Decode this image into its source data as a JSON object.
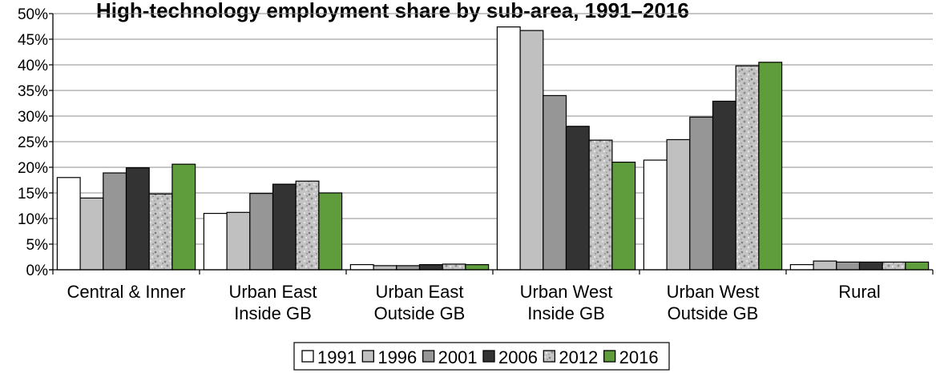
{
  "chart_data": {
    "type": "bar",
    "title": "High-technology employment share by sub-area, 1991–2016",
    "categories": [
      [
        "Central & Inner"
      ],
      [
        "Urban East",
        "Inside GB"
      ],
      [
        "Urban East",
        "Outside GB"
      ],
      [
        "Urban West",
        "Inside GB"
      ],
      [
        "Urban West",
        "Outside GB"
      ],
      [
        "Rural"
      ]
    ],
    "series": [
      {
        "name": "1991",
        "values": [
          18.0,
          11.0,
          1.0,
          47.4,
          21.4,
          1.0
        ]
      },
      {
        "name": "1996",
        "values": [
          14.0,
          11.2,
          0.8,
          46.7,
          25.4,
          1.7
        ]
      },
      {
        "name": "2001",
        "values": [
          18.9,
          14.9,
          0.8,
          34.0,
          29.8,
          1.5
        ]
      },
      {
        "name": "2006",
        "values": [
          19.9,
          16.7,
          1.0,
          28.0,
          32.9,
          1.5
        ]
      },
      {
        "name": "2012",
        "values": [
          14.8,
          17.3,
          1.1,
          25.3,
          39.8,
          1.5
        ]
      },
      {
        "name": "2016",
        "values": [
          20.6,
          15.0,
          1.0,
          21.0,
          40.5,
          1.5
        ]
      }
    ],
    "ylim": [
      0,
      50
    ],
    "ytick_step": 5,
    "y_tick_labels": [
      "0%",
      "5%",
      "10%",
      "15%",
      "20%",
      "25%",
      "30%",
      "35%",
      "40%",
      "45%",
      "50%"
    ],
    "gridlines": true,
    "legend_position": "bottom",
    "colors": {
      "1991": "#ffffff",
      "1996": "#c0c0c0",
      "2001": "#969696",
      "2006": "#333333",
      "2012": "#b8b8b8",
      "2016": "#5f9c3c"
    },
    "textured_series": [
      "2012"
    ]
  }
}
